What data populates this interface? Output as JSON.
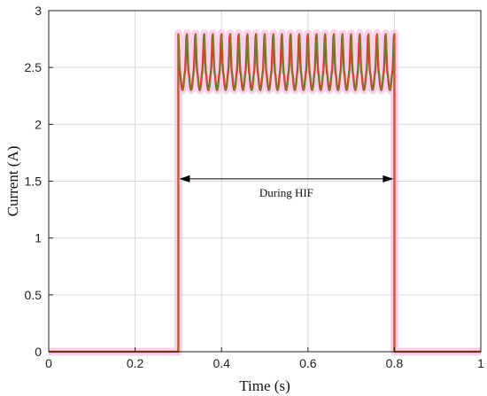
{
  "chart_data": {
    "type": "line",
    "xlabel": "Time (s)",
    "ylabel": "Current (A)",
    "xlim": [
      0,
      1
    ],
    "ylim": [
      0,
      3
    ],
    "xticks": [
      0,
      0.2,
      0.4,
      0.6,
      0.8,
      1
    ],
    "yticks": [
      0,
      0.5,
      1,
      1.5,
      2,
      2.5,
      3
    ],
    "xtick_labels": [
      "0",
      "0.2",
      "0.4",
      "0.6",
      "0.8",
      "1"
    ],
    "ytick_labels": [
      "0",
      "0.5",
      "1",
      "1.5",
      "2",
      "2.5",
      "3"
    ],
    "grid": true,
    "series": [
      {
        "color": "#e8141e",
        "segments": [
          {
            "x_start": 0,
            "x_end": 0.3,
            "value": 0
          },
          {
            "x_start": 0.3,
            "x_end": 0.8,
            "baseline": 2.45,
            "peak": 2.8,
            "trough": 2.3,
            "cycles": 25
          },
          {
            "x_start": 0.8,
            "x_end": 1,
            "value": 0
          }
        ]
      },
      {
        "color": "#6b8f2a",
        "segments": [
          {
            "x_start": 0,
            "x_end": 0.3,
            "value": 0
          },
          {
            "x_start": 0.3,
            "x_end": 0.8,
            "baseline": 2.45,
            "peak": 2.8,
            "trough": 2.3,
            "cycles": 25
          },
          {
            "x_start": 0.8,
            "x_end": 1,
            "value": 0
          }
        ]
      }
    ],
    "annotations": [
      {
        "text": "During HIF",
        "x_start": 0.3,
        "x_end": 0.8,
        "y": 1.52,
        "style": "double-arrow"
      }
    ]
  }
}
